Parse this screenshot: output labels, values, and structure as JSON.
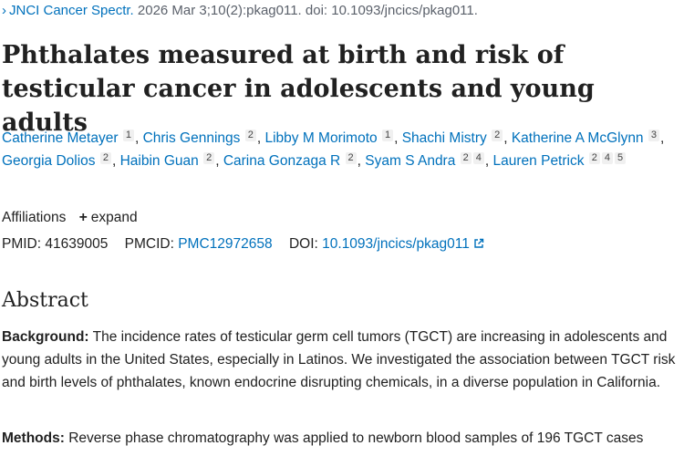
{
  "citation": {
    "journal": "JNCI Cancer Spectr.",
    "details": "2026 Mar 3;10(2):pkag011. doi: 10.1093/jncics/pkag011."
  },
  "title": "Phthalates measured at birth and risk of testicular cancer in adolescents and young adults",
  "authors": [
    {
      "name": "Catherine Metayer",
      "sup": [
        "1"
      ]
    },
    {
      "name": "Chris Gennings",
      "sup": [
        "2"
      ]
    },
    {
      "name": "Libby M Morimoto",
      "sup": [
        "1"
      ]
    },
    {
      "name": "Shachi Mistry",
      "sup": [
        "2"
      ]
    },
    {
      "name": "Katherine A McGlynn",
      "sup": [
        "3"
      ]
    },
    {
      "name": "Georgia Dolios",
      "sup": [
        "2"
      ]
    },
    {
      "name": "Haibin Guan",
      "sup": [
        "2"
      ]
    },
    {
      "name": "Carina Gonzaga R",
      "sup": [
        "2"
      ]
    },
    {
      "name": "Syam S Andra",
      "sup": [
        "2",
        "4"
      ]
    },
    {
      "name": "Lauren Petrick",
      "sup": [
        "2",
        "4",
        "5"
      ]
    }
  ],
  "affiliations": {
    "label": "Affiliations",
    "expand_label": "expand"
  },
  "ids": {
    "pmid_label": "PMID:",
    "pmid": "41639005",
    "pmcid_label": "PMCID:",
    "pmcid": "PMC12972658",
    "doi_label": "DOI:",
    "doi": "10.1093/jncics/pkag011"
  },
  "abstract": {
    "heading": "Abstract",
    "background_label": "Background:",
    "background_text": "The incidence rates of testicular germ cell tumors (TGCT) are increasing in adolescents and young adults in the United States, especially in Latinos. We investigated the association between TGCT risk and birth levels of phthalates, known endocrine disrupting chemicals, in a diverse population in California.",
    "methods_label": "Methods:",
    "methods_text": "Reverse phase chromatography was applied to newborn blood samples of 196 TGCT cases"
  }
}
